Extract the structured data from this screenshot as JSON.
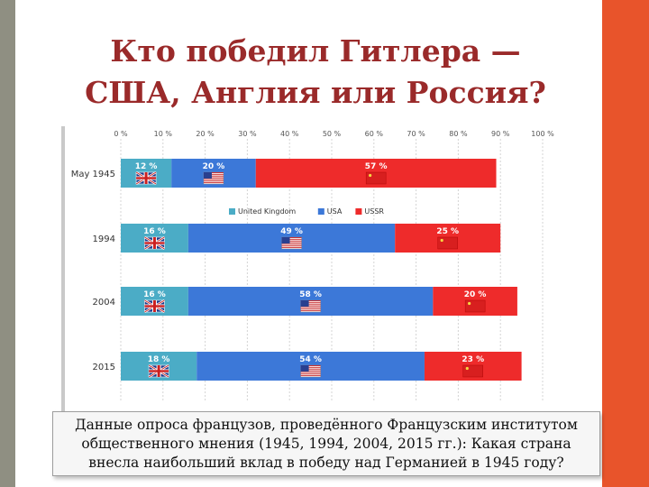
{
  "slide": {
    "title_line1": "Кто победил Гитлера —",
    "title_line2": "США, Англия или Россия?",
    "caption": "Данные опроса французов, проведённого Французским институтом общественного мнения (1945, 1994, 2004, 2015 гг.): Какая страна внесла наибольший вклад в победу над Германией в 1945 году?",
    "colors": {
      "left_bar": "#8f8f82",
      "right_bar": "#e8542b",
      "title": "#9a2a2a"
    }
  },
  "chart_data": {
    "type": "bar",
    "orientation": "horizontal",
    "stacked": true,
    "title": "",
    "xlabel": "",
    "ylabel": "",
    "xlim": [
      0,
      100
    ],
    "x_ticks": [
      "0 %",
      "10 %",
      "20 %",
      "30 %",
      "40 %",
      "50 %",
      "60 %",
      "70 %",
      "80 %",
      "90 %",
      "100 %"
    ],
    "categories": [
      "May 1945",
      "1994",
      "2004",
      "2015"
    ],
    "series": [
      {
        "name": "United Kingdom",
        "color": "#4bacc6",
        "flag": "uk-flag-icon",
        "values": [
          12,
          16,
          16,
          18
        ],
        "labels": [
          "12 %",
          "16 %",
          "16 %",
          "18 %"
        ]
      },
      {
        "name": "USA",
        "color": "#3c78d8",
        "flag": "us-flag-icon",
        "values": [
          20,
          49,
          58,
          54
        ],
        "labels": [
          "20 %",
          "49 %",
          "58 %",
          "54 %"
        ]
      },
      {
        "name": "USSR",
        "color": "#ee2b2b",
        "flag": "ussr-flag-icon",
        "values": [
          57,
          25,
          20,
          23
        ],
        "labels": [
          "57 %",
          "25 %",
          "20 %",
          "23 %"
        ]
      }
    ],
    "grid": true,
    "legend_position": "below-first-bar"
  }
}
